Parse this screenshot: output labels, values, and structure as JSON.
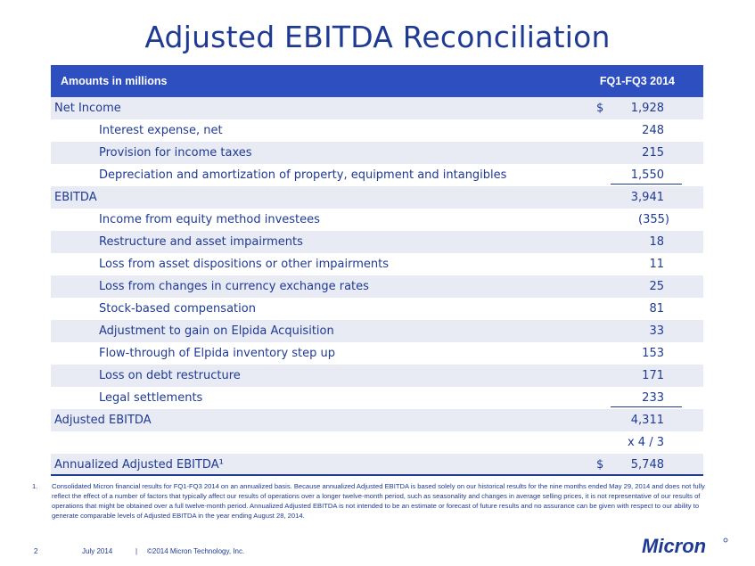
{
  "title": "Adjusted EBITDA Reconciliation",
  "table": {
    "header_left": "Amounts in millions",
    "header_right": "FQ1-FQ3 2014",
    "rows": [
      {
        "label": "Net Income",
        "dollar": "$",
        "value": "1,928"
      },
      {
        "label": "Interest expense, net",
        "value": "248"
      },
      {
        "label": "Provision for income taxes",
        "value": "215"
      },
      {
        "label": "Depreciation and amortization of property, equipment and intangibles",
        "value": "1,550"
      },
      {
        "label": "EBITDA",
        "value": "3,941"
      },
      {
        "label": "Income from equity method investees",
        "value": "(355)"
      },
      {
        "label": "Restructure and asset impairments",
        "value": "18"
      },
      {
        "label": "Loss from asset dispositions or other impairments",
        "value": "11"
      },
      {
        "label": "Loss from changes in currency exchange rates",
        "value": "25"
      },
      {
        "label": "Stock-based compensation",
        "value": "81"
      },
      {
        "label": "Adjustment to gain on Elpida Acquisition",
        "value": "33"
      },
      {
        "label": "Flow-through of Elpida inventory step up",
        "value": "153"
      },
      {
        "label": "Loss on debt restructure",
        "value": "171"
      },
      {
        "label": "Legal settlements",
        "value": "233"
      },
      {
        "label": "Adjusted EBITDA",
        "value": "4,311"
      },
      {
        "label": "",
        "value": "x 4 / 3"
      },
      {
        "label": "Annualized Adjusted EBITDA¹",
        "dollar": "$",
        "value": "5,748"
      }
    ]
  },
  "footnote": {
    "num": "1.",
    "text": "Consolidated Micron financial results for FQ1-FQ3 2014 on an annualized basis.   Because annualized Adjusted EBITDA is based solely on our historical results for the nine months ended May 29, 2014 and does not fully reflect the effect of a number of factors that typically affect our results of operations over a longer twelve-month period, such as seasonality and changes in average selling prices, it is not representative of our results of operations that might be obtained over a full twelve-month period.   Annualized Adjusted EBITDA is not intended to be an estimate or forecast of future results and no assurance can be given with respect to our ability to generate comparable levels of Adjusted EBITDA in the year ending August 28, 2014."
  },
  "footer": {
    "page": "2",
    "date": "July 2014",
    "separator": "|",
    "copyright": "©2014 Micron Technology, Inc."
  },
  "logo": {
    "text": "Micron",
    "color": "#1f3a93"
  }
}
